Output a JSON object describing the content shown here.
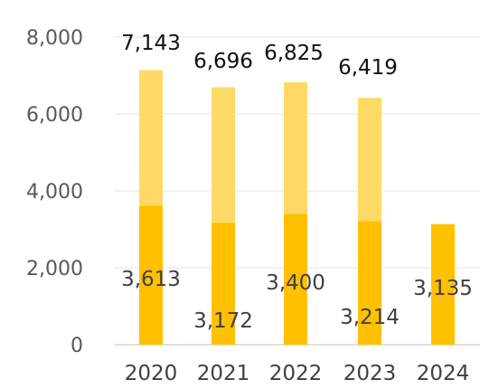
{
  "chart_data": {
    "type": "bar",
    "stacked": true,
    "categories": [
      "2020",
      "2021",
      "2022",
      "2023",
      "2024"
    ],
    "series": [
      {
        "values": [
          3613,
          3172,
          3400,
          3214,
          3135
        ],
        "color": "#FFC000"
      },
      {
        "values": [
          3530,
          3524,
          3425,
          3205,
          null
        ],
        "color": "#FFD966"
      }
    ],
    "totals": [
      7143,
      6696,
      6825,
      6419,
      null
    ],
    "total_labels": [
      "7,143",
      "6,696",
      "6,825",
      "6,419",
      ""
    ],
    "part_labels": [
      "3,613",
      "3,172",
      "3,400",
      "3,214",
      "3,135"
    ],
    "yticks": [
      "0",
      "2,000",
      "4,000",
      "6,000",
      "8,000"
    ],
    "ylim": [
      0,
      8000
    ],
    "grid": true,
    "legend": "none"
  }
}
